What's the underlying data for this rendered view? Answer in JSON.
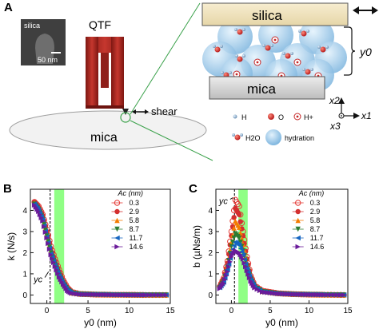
{
  "panel_labels": {
    "a": "A",
    "b": "B",
    "c": "C"
  },
  "schematic": {
    "inset_label": "silica",
    "inset_scale": "50 nm",
    "qtf_label": "QTF",
    "shear_label": "shear",
    "mica_label": "mica",
    "zoom_silica_label": "silica",
    "zoom_mica_label": "mica",
    "gap_label": "y0",
    "axes": {
      "x1": "x1",
      "x2": "x2",
      "x3": "x3"
    },
    "legend": {
      "h": "H",
      "o": "O",
      "hplus": "H+",
      "h2o": "H2O",
      "hydration": "hydration"
    }
  },
  "colors": {
    "silica_plate": "#f3e6c2",
    "mica_plate": "#d9d9d9",
    "qtf_red": "#b02a24",
    "hydration_blue": "#8fc3e8",
    "zoom_lines": "#3aa14a",
    "green_band": "#7dff70"
  },
  "chart_data": [
    {
      "panel": "B",
      "type": "scatter",
      "xlabel": "y0 (nm)",
      "ylabel": "k (N/s)",
      "xlim": [
        -2,
        15
      ],
      "ylim": [
        -0.4,
        5
      ],
      "xticks": [
        0,
        5,
        10,
        15
      ],
      "yticks": [
        0,
        1,
        2,
        3,
        4
      ],
      "annotation": "yc",
      "yc": 0.4,
      "green_band": [
        0.9,
        2.1
      ],
      "legend_title": "Ac (nm)",
      "series": [
        {
          "name": "0.3",
          "color": "#e53935",
          "marker": "open-circle",
          "x": [
            -1.5,
            -1,
            -0.5,
            0,
            0.5,
            1,
            1.5,
            2,
            2.5,
            3,
            4,
            6,
            8,
            10,
            12,
            14.5
          ],
          "y": [
            4.4,
            4.2,
            3.8,
            3.1,
            2.3,
            1.7,
            1.2,
            0.7,
            0.35,
            0.15,
            0.05,
            0.02,
            0.01,
            0.01,
            0.0,
            0.0
          ]
        },
        {
          "name": "2.9",
          "color": "#d32f2f",
          "marker": "filled-circle",
          "x": [
            -1.5,
            -1,
            -0.5,
            0,
            0.5,
            1,
            1.5,
            2,
            2.5,
            3,
            4,
            6,
            8,
            10,
            12,
            14.5
          ],
          "y": [
            4.4,
            4.15,
            3.75,
            3.0,
            2.2,
            1.6,
            1.1,
            0.65,
            0.3,
            0.12,
            0.04,
            0.02,
            0.01,
            0.0,
            0.0,
            0.0
          ]
        },
        {
          "name": "5.8",
          "color": "#f57c00",
          "marker": "triangle-up",
          "x": [
            -1.5,
            -1,
            -0.5,
            0,
            0.5,
            1,
            1.5,
            2,
            2.5,
            3,
            4,
            6,
            8,
            10,
            12,
            14.5
          ],
          "y": [
            4.35,
            4.1,
            3.7,
            2.9,
            2.1,
            1.5,
            1.0,
            0.6,
            0.28,
            0.1,
            0.04,
            0.02,
            0.01,
            0.0,
            0.0,
            0.0
          ]
        },
        {
          "name": "8.7",
          "color": "#2e7d32",
          "marker": "triangle-down",
          "x": [
            -1.5,
            -1,
            -0.5,
            0,
            0.5,
            1,
            1.5,
            2,
            2.5,
            3,
            4,
            6,
            8,
            10,
            12,
            14.5
          ],
          "y": [
            4.3,
            4.05,
            3.6,
            2.8,
            2.0,
            1.45,
            0.95,
            0.55,
            0.25,
            0.1,
            0.04,
            0.02,
            0.01,
            0.0,
            0.0,
            0.0
          ]
        },
        {
          "name": "11.7",
          "color": "#1565c0",
          "marker": "triangle-left",
          "x": [
            -1.5,
            -1,
            -0.5,
            0,
            0.5,
            1,
            1.5,
            2,
            2.5,
            3,
            4,
            6,
            8,
            10,
            12,
            14.5
          ],
          "y": [
            4.3,
            4.0,
            3.55,
            2.75,
            1.95,
            1.4,
            0.9,
            0.5,
            0.22,
            0.09,
            0.03,
            0.02,
            0.01,
            0.0,
            0.0,
            0.0
          ]
        },
        {
          "name": "14.6",
          "color": "#6a1b9a",
          "marker": "triangle-right",
          "x": [
            -1.5,
            -1,
            -0.5,
            0,
            0.5,
            1,
            1.5,
            2,
            2.5,
            3,
            4,
            6,
            8,
            10,
            12,
            14.5
          ],
          "y": [
            4.25,
            3.95,
            3.5,
            2.7,
            1.9,
            1.35,
            0.85,
            0.5,
            0.2,
            0.08,
            0.03,
            0.02,
            0.01,
            0.0,
            0.0,
            0.0
          ]
        }
      ]
    },
    {
      "panel": "C",
      "type": "scatter",
      "xlabel": "y0 (nm)",
      "ylabel": "b (µNs/m)",
      "xlim": [
        -2,
        15
      ],
      "ylim": [
        -0.4,
        5
      ],
      "xticks": [
        0,
        5,
        10,
        15
      ],
      "yticks": [
        0,
        1,
        2,
        3,
        4
      ],
      "annotation": "yc",
      "yc": 0.4,
      "green_band": [
        0.9,
        2.1
      ],
      "legend_title": "Ac (nm)",
      "series": [
        {
          "name": "0.3",
          "color": "#e53935",
          "marker": "open-circle",
          "x": [
            -1.5,
            -1,
            -0.5,
            0,
            0.5,
            1,
            1.5,
            2,
            2.5,
            3,
            4,
            6,
            8,
            10,
            12,
            14.5
          ],
          "y": [
            0.4,
            0.8,
            1.6,
            3.0,
            4.5,
            4.2,
            3.0,
            1.8,
            0.9,
            0.45,
            0.2,
            0.08,
            0.04,
            0.02,
            0.01,
            0.0
          ]
        },
        {
          "name": "2.9",
          "color": "#d32f2f",
          "marker": "filled-circle",
          "x": [
            -1.5,
            -1,
            -0.5,
            0,
            0.5,
            1,
            1.5,
            2,
            2.5,
            3,
            4,
            6,
            8,
            10,
            12,
            14.5
          ],
          "y": [
            0.4,
            0.75,
            1.5,
            2.8,
            4.1,
            3.8,
            2.8,
            1.7,
            0.85,
            0.42,
            0.18,
            0.07,
            0.04,
            0.02,
            0.01,
            0.0
          ]
        },
        {
          "name": "5.8",
          "color": "#f57c00",
          "marker": "triangle-up",
          "x": [
            -1.5,
            -1,
            -0.5,
            0,
            0.5,
            1,
            1.5,
            2,
            2.5,
            3,
            4,
            6,
            8,
            10,
            12,
            14.5
          ],
          "y": [
            0.4,
            0.7,
            1.4,
            2.5,
            3.5,
            3.2,
            2.4,
            1.5,
            0.8,
            0.4,
            0.17,
            0.07,
            0.03,
            0.02,
            0.01,
            0.0
          ]
        },
        {
          "name": "8.7",
          "color": "#2e7d32",
          "marker": "triangle-down",
          "x": [
            -1.5,
            -1,
            -0.5,
            0,
            0.5,
            1,
            1.5,
            2,
            2.5,
            3,
            4,
            6,
            8,
            10,
            12,
            14.5
          ],
          "y": [
            0.35,
            0.65,
            1.3,
            2.3,
            2.9,
            2.7,
            2.1,
            1.35,
            0.75,
            0.38,
            0.16,
            0.06,
            0.03,
            0.02,
            0.01,
            0.0
          ]
        },
        {
          "name": "11.7",
          "color": "#1565c0",
          "marker": "triangle-left",
          "x": [
            -1.5,
            -1,
            -0.5,
            0,
            0.5,
            1,
            1.5,
            2,
            2.5,
            3,
            4,
            6,
            8,
            10,
            12,
            14.5
          ],
          "y": [
            0.35,
            0.6,
            1.2,
            2.0,
            2.5,
            2.35,
            1.9,
            1.25,
            0.7,
            0.36,
            0.15,
            0.06,
            0.03,
            0.02,
            0.01,
            0.0
          ]
        },
        {
          "name": "14.6",
          "color": "#6a1b9a",
          "marker": "triangle-right",
          "x": [
            -1.5,
            -1,
            -0.5,
            0,
            0.5,
            1,
            1.5,
            2,
            2.5,
            3,
            4,
            6,
            8,
            10,
            12,
            14.5
          ],
          "y": [
            0.3,
            0.55,
            1.1,
            1.8,
            2.1,
            2.0,
            1.7,
            1.15,
            0.65,
            0.34,
            0.14,
            0.06,
            0.03,
            0.02,
            0.01,
            0.0
          ]
        }
      ]
    }
  ]
}
